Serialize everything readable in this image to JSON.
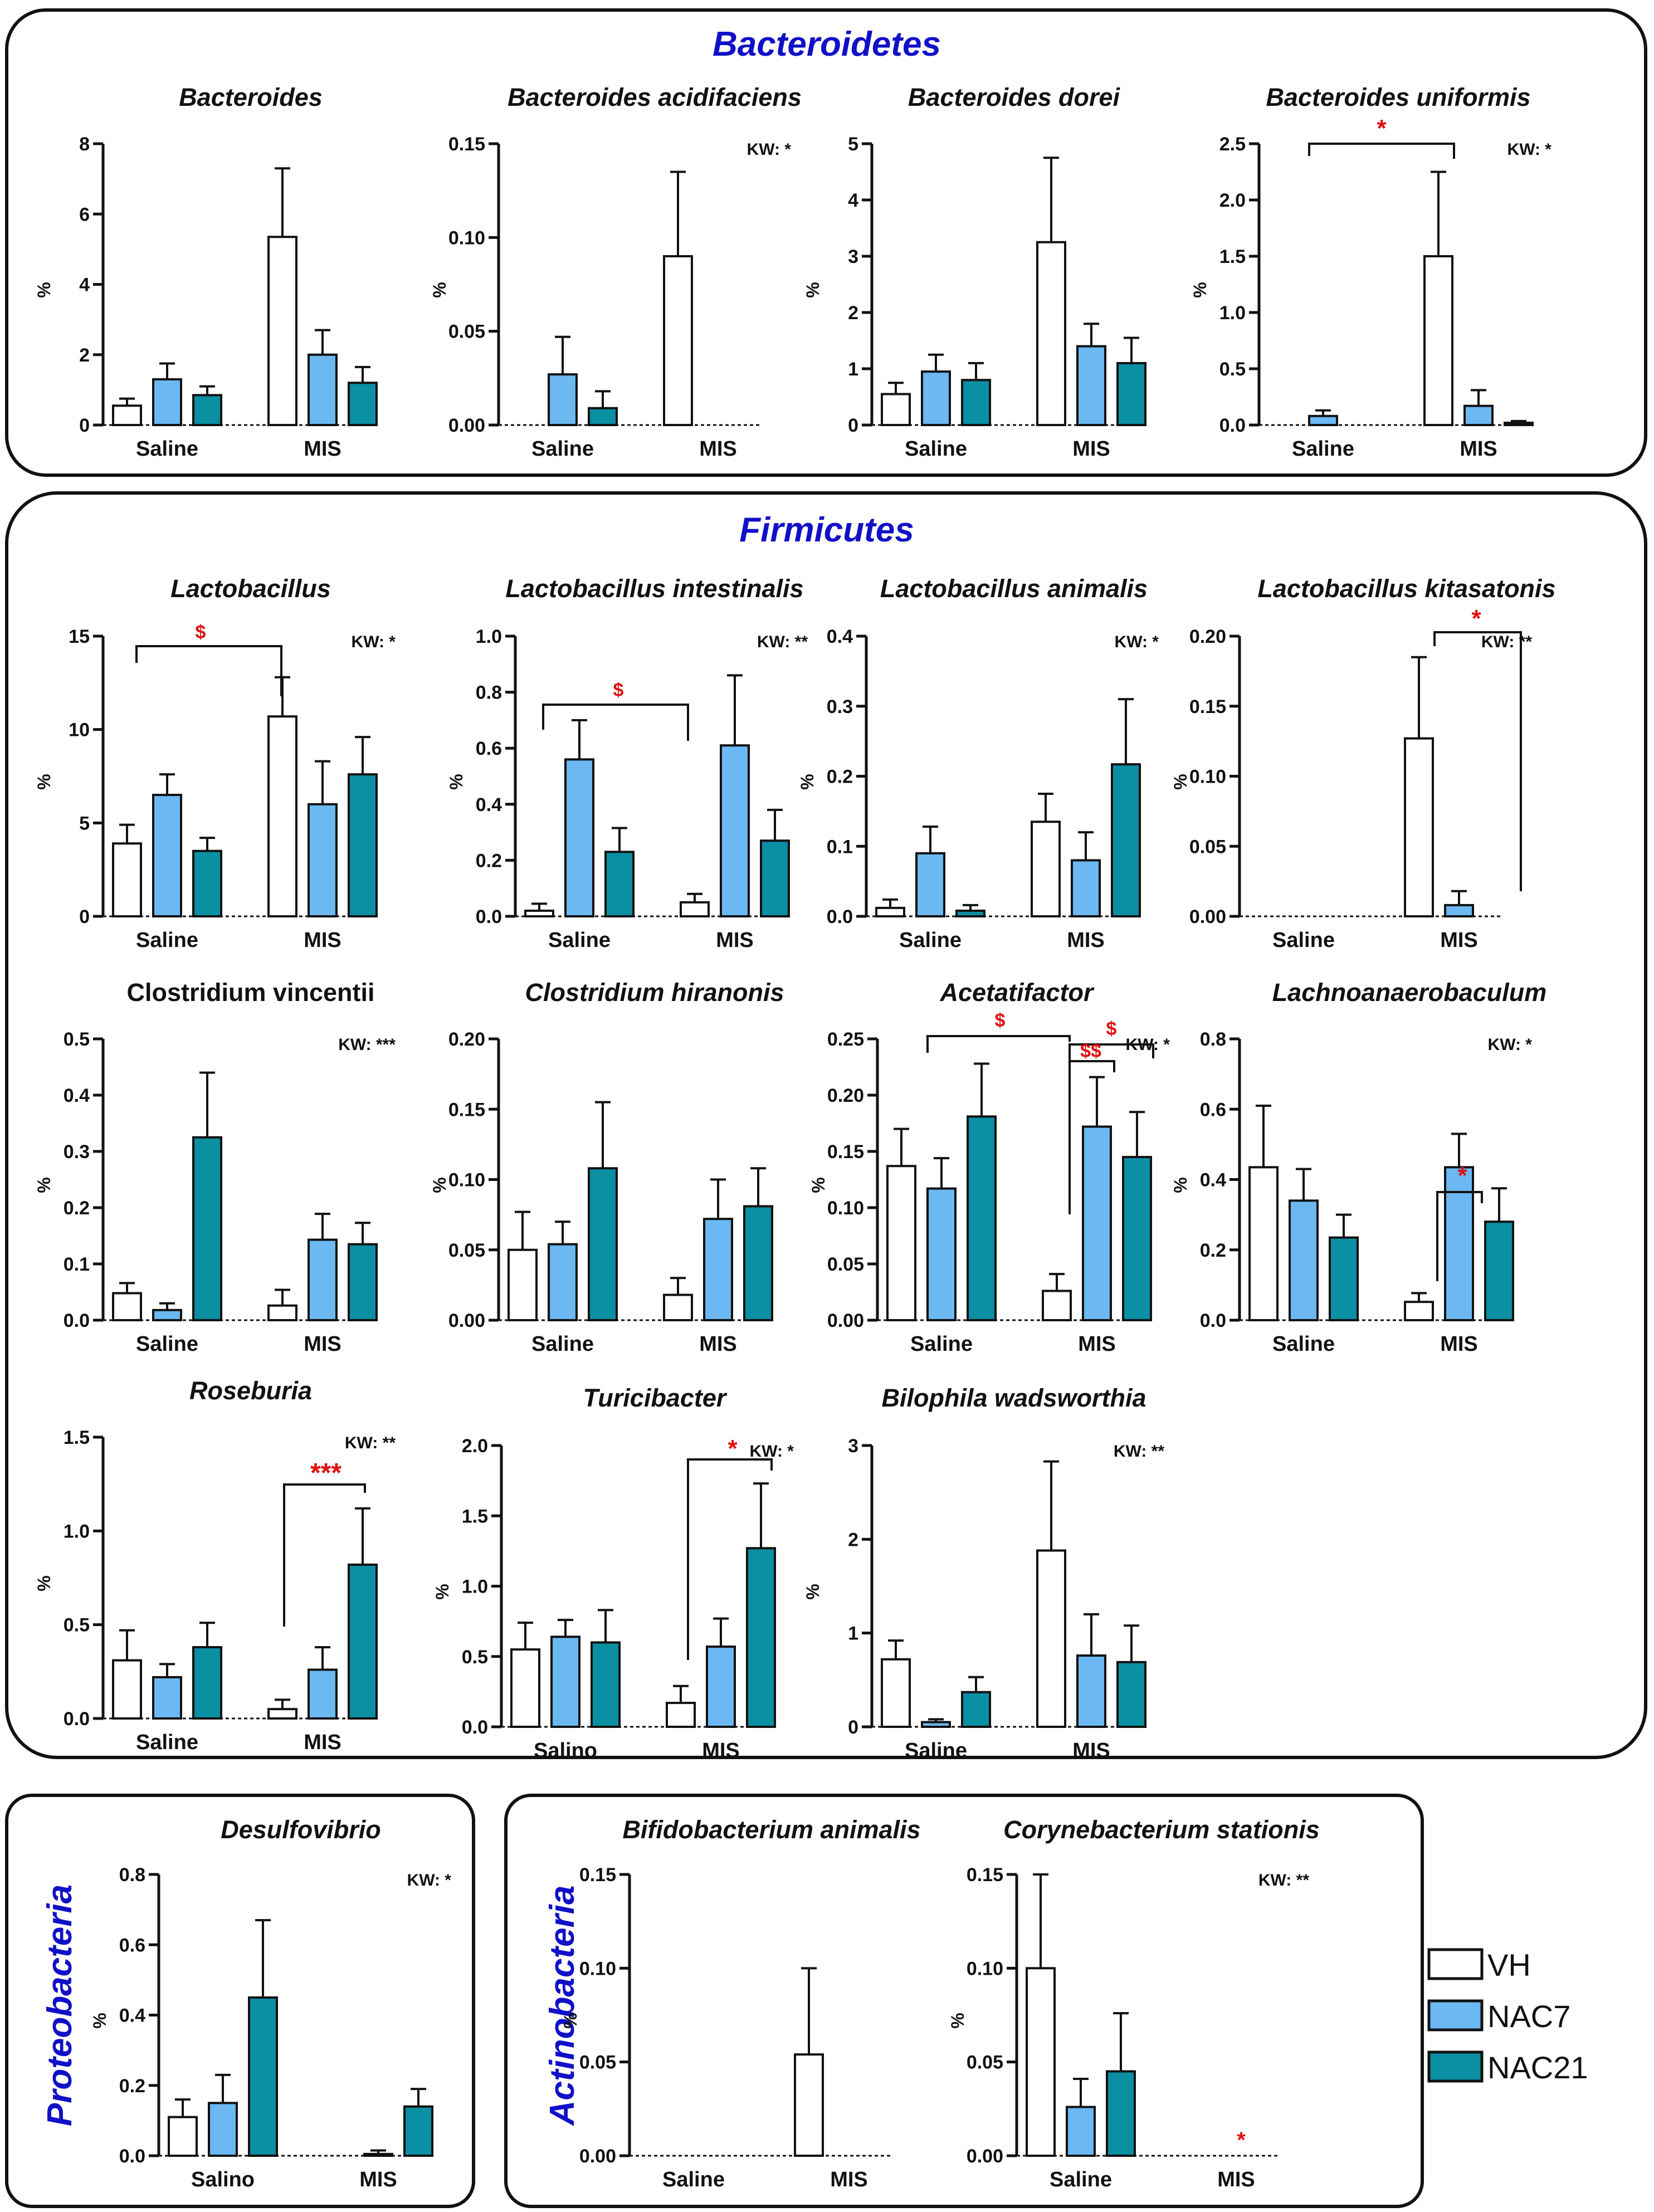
{
  "panels": {
    "bacteroidetes": "Bacteroidetes",
    "firmicutes": "Firmicutes",
    "proteobacteria": "Proteobacteria",
    "actinobacteria": "Actinobacteria"
  },
  "legend": {
    "items": [
      {
        "label": "VH",
        "color": "#ffffff"
      },
      {
        "label": "NAC7",
        "color": "#6bb8f2"
      },
      {
        "label": "NAC21",
        "color": "#0a8fa3"
      }
    ]
  },
  "colors": {
    "VH": "#ffffff",
    "NAC7": "#6bb8f2",
    "NAC21": "#0a8fa3",
    "sig": "#e01010",
    "title": "#1010c8"
  },
  "chart_data": [
    {
      "id": "bacteroides",
      "type": "bar",
      "title": "Bacteroides",
      "italic": true,
      "ylabel": "%",
      "ylim": [
        0,
        8
      ],
      "yticks": [
        "0",
        "2",
        "4",
        "6",
        "8"
      ],
      "categories": [
        "Saline",
        "MIS"
      ],
      "series": [
        {
          "name": "VH",
          "values": [
            0.55,
            5.35
          ],
          "errors": [
            0.2,
            1.95
          ]
        },
        {
          "name": "NAC7",
          "values": [
            1.3,
            2.0
          ],
          "errors": [
            0.45,
            0.7
          ]
        },
        {
          "name": "NAC21",
          "values": [
            0.85,
            1.2
          ],
          "errors": [
            0.25,
            0.45
          ]
        }
      ]
    },
    {
      "id": "bac-acidifaciens",
      "type": "bar",
      "title": "Bacteroides acidifaciens",
      "italic": true,
      "ylabel": "%",
      "ylim": [
        0,
        0.15
      ],
      "yticks": [
        "0.00",
        "0.05",
        "0.10",
        "0.15"
      ],
      "kw": "KW: *",
      "categories": [
        "Saline",
        "MIS"
      ],
      "series": [
        {
          "name": "VH",
          "values": [
            0,
            0.09
          ],
          "errors": [
            0,
            0.045
          ]
        },
        {
          "name": "NAC7",
          "values": [
            0.027,
            0
          ],
          "errors": [
            0.02,
            0
          ]
        },
        {
          "name": "NAC21",
          "values": [
            0.009,
            0
          ],
          "errors": [
            0.009,
            0
          ]
        }
      ]
    },
    {
      "id": "bac-dorei",
      "type": "bar",
      "title": "Bacteroides dorei",
      "italic": true,
      "ylabel": "%",
      "ylim": [
        0,
        5
      ],
      "yticks": [
        "0",
        "1",
        "2",
        "3",
        "4",
        "5"
      ],
      "categories": [
        "Saline",
        "MIS"
      ],
      "series": [
        {
          "name": "VH",
          "values": [
            0.55,
            3.25
          ],
          "errors": [
            0.2,
            1.5
          ]
        },
        {
          "name": "NAC7",
          "values": [
            0.95,
            1.4
          ],
          "errors": [
            0.3,
            0.4
          ]
        },
        {
          "name": "NAC21",
          "values": [
            0.8,
            1.1
          ],
          "errors": [
            0.3,
            0.45
          ]
        }
      ]
    },
    {
      "id": "bac-uniformis",
      "type": "bar",
      "title": "Bacteroides uniformis",
      "italic": true,
      "ylabel": "%",
      "ylim": [
        0,
        2.5
      ],
      "yticks": [
        "0.0",
        "0.5",
        "1.0",
        "1.5",
        "2.0",
        "2.5"
      ],
      "kw": "KW: *",
      "categories": [
        "Saline",
        "MIS"
      ],
      "series": [
        {
          "name": "VH",
          "values": [
            0,
            1.5
          ],
          "errors": [
            0,
            0.75
          ]
        },
        {
          "name": "NAC7",
          "values": [
            0.08,
            0.17
          ],
          "errors": [
            0.05,
            0.14
          ]
        },
        {
          "name": "NAC21",
          "values": [
            0,
            0.02
          ],
          "errors": [
            0,
            0.015
          ]
        }
      ],
      "annotations": [
        {
          "text": "*"
        }
      ]
    },
    {
      "id": "lactobacillus",
      "type": "bar",
      "title": "Lactobacillus",
      "italic": true,
      "ylabel": "%",
      "ylim": [
        0,
        15
      ],
      "yticks": [
        "0",
        "5",
        "10",
        "15"
      ],
      "kw": "KW: *",
      "categories": [
        "Saline",
        "MIS"
      ],
      "series": [
        {
          "name": "VH",
          "values": [
            3.9,
            10.7
          ],
          "errors": [
            1.0,
            2.1
          ]
        },
        {
          "name": "NAC7",
          "values": [
            6.5,
            6.0
          ],
          "errors": [
            1.1,
            2.3
          ]
        },
        {
          "name": "NAC21",
          "values": [
            3.5,
            7.6
          ],
          "errors": [
            0.7,
            2.0
          ]
        }
      ],
      "annotations": [
        {
          "text": "$"
        }
      ]
    },
    {
      "id": "lac-intestinalis",
      "type": "bar",
      "title": "Lactobacillus intestinalis",
      "italic": true,
      "ylabel": "%",
      "ylim": [
        0,
        1.0
      ],
      "yticks": [
        "0.0",
        "0.2",
        "0.4",
        "0.6",
        "0.8",
        "1.0"
      ],
      "kw": "KW: **",
      "categories": [
        "Saline",
        "MIS"
      ],
      "series": [
        {
          "name": "VH",
          "values": [
            0.02,
            0.05
          ],
          "errors": [
            0.025,
            0.03
          ]
        },
        {
          "name": "NAC7",
          "values": [
            0.56,
            0.61
          ],
          "errors": [
            0.14,
            0.25
          ]
        },
        {
          "name": "NAC21",
          "values": [
            0.23,
            0.27
          ],
          "errors": [
            0.085,
            0.11
          ]
        }
      ],
      "annotations": [
        {
          "text": "$"
        }
      ]
    },
    {
      "id": "lac-animalis",
      "type": "bar",
      "title": "Lactobacillus animalis",
      "italic": true,
      "ylabel": "%",
      "ylim": [
        0,
        0.4
      ],
      "yticks": [
        "0.0",
        "0.1",
        "0.2",
        "0.3",
        "0.4"
      ],
      "kw": "KW: *",
      "categories": [
        "Saline",
        "MIS"
      ],
      "series": [
        {
          "name": "VH",
          "values": [
            0.012,
            0.135
          ],
          "errors": [
            0.012,
            0.04
          ]
        },
        {
          "name": "NAC7",
          "values": [
            0.09,
            0.08
          ],
          "errors": [
            0.038,
            0.04
          ]
        },
        {
          "name": "NAC21",
          "values": [
            0.008,
            0.217
          ],
          "errors": [
            0.008,
            0.093
          ]
        }
      ]
    },
    {
      "id": "lac-kitasatonis",
      "type": "bar",
      "title": "Lactobacillus kitasatonis",
      "italic": true,
      "ylabel": "%",
      "ylim": [
        0,
        0.2
      ],
      "yticks": [
        "0.00",
        "0.05",
        "0.10",
        "0.15",
        "0.20"
      ],
      "kw": "KW: **",
      "categories": [
        "Saline",
        "MIS"
      ],
      "series": [
        {
          "name": "VH",
          "values": [
            0,
            0.127
          ],
          "errors": [
            0,
            0.058
          ]
        },
        {
          "name": "NAC7",
          "values": [
            0,
            0.008
          ],
          "errors": [
            0,
            0.01
          ]
        },
        {
          "name": "NAC21",
          "values": [
            0,
            0
          ],
          "errors": [
            0,
            0
          ]
        }
      ],
      "annotations": [
        {
          "text": "*"
        }
      ]
    },
    {
      "id": "clo-vincentii",
      "type": "bar",
      "title": "Clostridium vincentii",
      "italic": false,
      "ylabel": "%",
      "ylim": [
        0,
        0.5
      ],
      "yticks": [
        "0.0",
        "0.1",
        "0.2",
        "0.3",
        "0.4",
        "0.5"
      ],
      "kw": "KW: ***",
      "categories": [
        "Saline",
        "MIS"
      ],
      "series": [
        {
          "name": "VH",
          "values": [
            0.048,
            0.026
          ],
          "errors": [
            0.018,
            0.028
          ]
        },
        {
          "name": "NAC7",
          "values": [
            0.018,
            0.143
          ],
          "errors": [
            0.012,
            0.046
          ]
        },
        {
          "name": "NAC21",
          "values": [
            0.325,
            0.135
          ],
          "errors": [
            0.115,
            0.038
          ]
        }
      ]
    },
    {
      "id": "clo-hiranonis",
      "type": "bar",
      "title": "Clostridium hiranonis",
      "italic": true,
      "ylabel": "%",
      "ylim": [
        0,
        0.2
      ],
      "yticks": [
        "0.00",
        "0.05",
        "0.10",
        "0.15",
        "0.20"
      ],
      "categories": [
        "Saline",
        "MIS"
      ],
      "series": [
        {
          "name": "VH",
          "values": [
            0.05,
            0.018
          ],
          "errors": [
            0.027,
            0.012
          ]
        },
        {
          "name": "NAC7",
          "values": [
            0.054,
            0.072
          ],
          "errors": [
            0.016,
            0.028
          ]
        },
        {
          "name": "NAC21",
          "values": [
            0.108,
            0.081
          ],
          "errors": [
            0.047,
            0.027
          ]
        }
      ]
    },
    {
      "id": "acetatifactor",
      "type": "bar",
      "title": "Acetatifactor",
      "italic": true,
      "ylabel": "%",
      "ylim": [
        0,
        0.25
      ],
      "yticks": [
        "0.00",
        "0.05",
        "0.10",
        "0.15",
        "0.20",
        "0.25"
      ],
      "kw": "KW: *",
      "categories": [
        "Saline",
        "MIS"
      ],
      "series": [
        {
          "name": "VH",
          "values": [
            0.137,
            0.026
          ],
          "errors": [
            0.033,
            0.015
          ]
        },
        {
          "name": "NAC7",
          "values": [
            0.117,
            0.172
          ],
          "errors": [
            0.027,
            0.044
          ]
        },
        {
          "name": "NAC21",
          "values": [
            0.181,
            0.145
          ],
          "errors": [
            0.047,
            0.04
          ]
        }
      ],
      "annotations": [
        {
          "text": "$"
        },
        {
          "text": "$"
        },
        {
          "text": "$$"
        }
      ]
    },
    {
      "id": "lachnoanaerobaculum",
      "type": "bar",
      "title": "Lachnoanaerobaculum",
      "italic": true,
      "ylabel": "%",
      "ylim": [
        0,
        0.8
      ],
      "yticks": [
        "0.0",
        "0.2",
        "0.4",
        "0.6",
        "0.8"
      ],
      "kw": "KW: *",
      "categories": [
        "Saline",
        "MIS"
      ],
      "series": [
        {
          "name": "VH",
          "values": [
            0.435,
            0.052
          ],
          "errors": [
            0.175,
            0.025
          ]
        },
        {
          "name": "NAC7",
          "values": [
            0.34,
            0.435
          ],
          "errors": [
            0.09,
            0.095
          ]
        },
        {
          "name": "NAC21",
          "values": [
            0.235,
            0.28
          ],
          "errors": [
            0.065,
            0.095
          ]
        }
      ],
      "annotations": [
        {
          "text": "*"
        }
      ]
    },
    {
      "id": "roseburia",
      "type": "bar",
      "title": "Roseburia",
      "italic": true,
      "ylabel": "%",
      "ylim": [
        0,
        1.5
      ],
      "yticks": [
        "0.0",
        "0.5",
        "1.0",
        "1.5"
      ],
      "kw": "KW: **",
      "categories": [
        "Saline",
        "MIS"
      ],
      "series": [
        {
          "name": "VH",
          "values": [
            0.31,
            0.05
          ],
          "errors": [
            0.16,
            0.05
          ]
        },
        {
          "name": "NAC7",
          "values": [
            0.22,
            0.26
          ],
          "errors": [
            0.07,
            0.12
          ]
        },
        {
          "name": "NAC21",
          "values": [
            0.38,
            0.82
          ],
          "errors": [
            0.13,
            0.3
          ]
        }
      ],
      "annotations": [
        {
          "text": "***"
        }
      ]
    },
    {
      "id": "turicibacter",
      "type": "bar",
      "title": "Turicibacter",
      "italic": true,
      "ylabel": "%",
      "ylim": [
        0,
        2.0
      ],
      "yticks": [
        "0.0",
        "0.5",
        "1.0",
        "1.5",
        "2.0"
      ],
      "kw": "KW: *",
      "categories": [
        "Salino",
        "MIS"
      ],
      "series": [
        {
          "name": "VH",
          "values": [
            0.55,
            0.17
          ],
          "errors": [
            0.19,
            0.12
          ]
        },
        {
          "name": "NAC7",
          "values": [
            0.64,
            0.57
          ],
          "errors": [
            0.12,
            0.2
          ]
        },
        {
          "name": "NAC21",
          "values": [
            0.6,
            1.27
          ],
          "errors": [
            0.23,
            0.46
          ]
        }
      ],
      "annotations": [
        {
          "text": "*"
        }
      ]
    },
    {
      "id": "bilophila",
      "type": "bar",
      "title": "Bilophila wadsworthia",
      "italic": true,
      "ylabel": "%",
      "ylim": [
        0,
        3
      ],
      "yticks": [
        "0",
        "1",
        "2",
        "3"
      ],
      "kw": "KW: **",
      "categories": [
        "Saline",
        "MIS"
      ],
      "series": [
        {
          "name": "VH",
          "values": [
            0.72,
            1.88
          ],
          "errors": [
            0.2,
            0.95
          ]
        },
        {
          "name": "NAC7",
          "values": [
            0.05,
            0.76
          ],
          "errors": [
            0.03,
            0.44
          ]
        },
        {
          "name": "NAC21",
          "values": [
            0.37,
            0.69
          ],
          "errors": [
            0.16,
            0.39
          ]
        }
      ]
    },
    {
      "id": "desulfovibrio",
      "type": "bar",
      "title": "Desulfovibrio",
      "italic": true,
      "ylabel": "%",
      "ylim": [
        0,
        0.8
      ],
      "yticks": [
        "0.0",
        "0.2",
        "0.4",
        "0.6",
        "0.8"
      ],
      "kw": "KW: *",
      "categories": [
        "Salino",
        "MIS"
      ],
      "series": [
        {
          "name": "VH",
          "values": [
            0.11,
            0
          ],
          "errors": [
            0.05,
            0
          ]
        },
        {
          "name": "NAC7",
          "values": [
            0.15,
            0.005
          ],
          "errors": [
            0.08,
            0.01
          ]
        },
        {
          "name": "NAC21",
          "values": [
            0.45,
            0.14
          ],
          "errors": [
            0.22,
            0.05
          ]
        }
      ]
    },
    {
      "id": "bif-animalis",
      "type": "bar",
      "title": "Bifidobacterium animalis",
      "italic": true,
      "ylabel": "%",
      "ylim": [
        0,
        0.15
      ],
      "yticks": [
        "0.00",
        "0.05",
        "0.10",
        "0.15"
      ],
      "categories": [
        "Saline",
        "MIS"
      ],
      "series": [
        {
          "name": "VH",
          "values": [
            0,
            0.054
          ],
          "errors": [
            0,
            0.046
          ]
        },
        {
          "name": "NAC7",
          "values": [
            0,
            0
          ],
          "errors": [
            0,
            0
          ]
        },
        {
          "name": "NAC21",
          "values": [
            0,
            0
          ],
          "errors": [
            0,
            0
          ]
        }
      ]
    },
    {
      "id": "cor-stationis",
      "type": "bar",
      "title": "Corynebacterium stationis",
      "italic": true,
      "ylabel": "%",
      "ylim": [
        0,
        0.15
      ],
      "yticks": [
        "0.00",
        "0.05",
        "0.10",
        "0.15"
      ],
      "kw": "KW: **",
      "categories": [
        "Saline",
        "MIS"
      ],
      "series": [
        {
          "name": "VH",
          "values": [
            0.1,
            0
          ],
          "errors": [
            0.05,
            0
          ]
        },
        {
          "name": "NAC7",
          "values": [
            0.026,
            0
          ],
          "errors": [
            0.015,
            0
          ]
        },
        {
          "name": "NAC21",
          "values": [
            0.045,
            0
          ],
          "errors": [
            0.031,
            0
          ]
        }
      ],
      "annotations": [
        {
          "text": "*"
        }
      ]
    }
  ]
}
